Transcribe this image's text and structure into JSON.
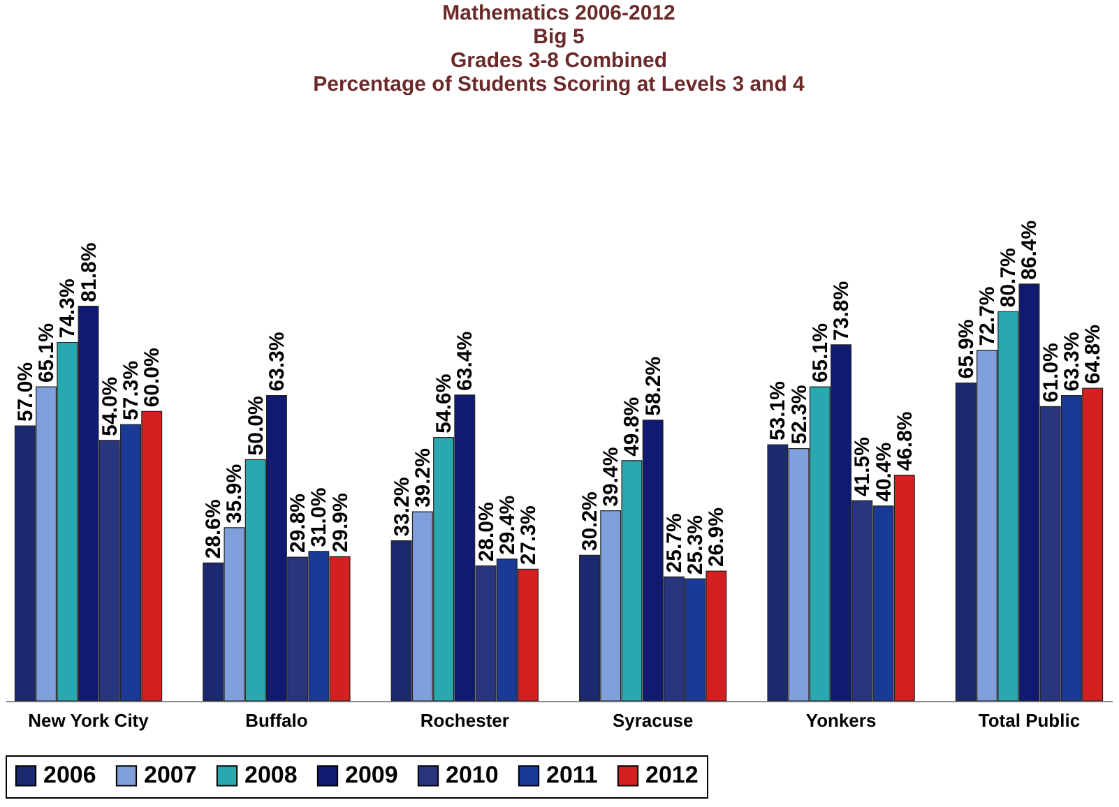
{
  "chart_data": {
    "type": "bar",
    "title": [
      "Mathematics 2006-2012",
      "Big 5",
      "Grades 3-8 Combined",
      "Percentage of Students Scoring at Levels 3 and 4"
    ],
    "categories": [
      "New York City",
      "Buffalo",
      "Rochester",
      "Syracuse",
      "Yonkers",
      "Total Public"
    ],
    "series": [
      {
        "name": "2006",
        "color": "#1b2a6e",
        "values": [
          57.0,
          28.6,
          33.2,
          30.2,
          53.1,
          65.9
        ],
        "value_labels": [
          "57.0%",
          "28.6%",
          "33.2%",
          "30.2%",
          "53.1%",
          "65.9%"
        ]
      },
      {
        "name": "2007",
        "color": "#7fa0dc",
        "values": [
          65.1,
          35.9,
          39.2,
          39.4,
          52.3,
          72.7
        ],
        "value_labels": [
          "65.1%",
          "35.9%",
          "39.2%",
          "39.4%",
          "52.3%",
          "72.7%"
        ]
      },
      {
        "name": "2008",
        "color": "#2aa8b0",
        "values": [
          74.3,
          50.0,
          54.6,
          49.8,
          65.1,
          80.7
        ],
        "value_labels": [
          "74.3%",
          "50.0%",
          "54.6%",
          "49.8%",
          "65.1%",
          "80.7%"
        ]
      },
      {
        "name": "2009",
        "color": "#101a70",
        "values": [
          81.8,
          63.3,
          63.4,
          58.2,
          73.8,
          86.4
        ],
        "value_labels": [
          "81.8%",
          "63.3%",
          "63.4%",
          "58.2%",
          "73.8%",
          "86.4%"
        ]
      },
      {
        "name": "2010",
        "color": "#2a3580",
        "values": [
          54.0,
          29.8,
          28.0,
          25.7,
          41.5,
          61.0
        ],
        "value_labels": [
          "54.0%",
          "29.8%",
          "28.0%",
          "25.7%",
          "41.5%",
          "61.0%"
        ]
      },
      {
        "name": "2011",
        "color": "#1a3a96",
        "values": [
          57.3,
          31.0,
          29.4,
          25.3,
          40.4,
          63.3
        ],
        "value_labels": [
          "57.3%",
          "31.0%",
          "29.4%",
          "25.3%",
          "40.4%",
          "63.3%"
        ]
      },
      {
        "name": "2012",
        "color": "#d42020",
        "values": [
          60.0,
          29.9,
          27.3,
          26.9,
          46.8,
          64.8
        ],
        "value_labels": [
          "60.0%",
          "29.9%",
          "27.3%",
          "26.9%",
          "46.8%",
          "64.8%"
        ]
      }
    ],
    "legend": "bottom",
    "grid": false,
    "tick_labels": "x"
  }
}
